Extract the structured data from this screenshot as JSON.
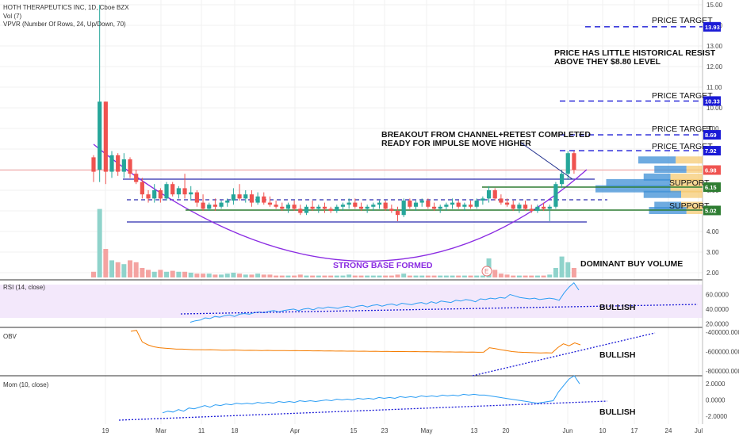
{
  "header": {
    "title": "HOTH THERAPEUTICS INC, 1D, Cboe BZX",
    "vol_label": "Vol (7)",
    "vpvr_label": "VPVR (Number Of Rows, 24, Up/Down, 70)",
    "rsi_label": "RSI (14, close)",
    "obv_label": "OBV",
    "mom_label": "Mom (10, close)"
  },
  "colors": {
    "up": "#26a69a",
    "down": "#ef5350",
    "channel": "#2a2aad",
    "arc": "#8a2be2",
    "support": "#2e7d32",
    "target": "#1a1ad6",
    "rsi_line": "#2a9df4",
    "obv_line": "#f57c00",
    "mom_line": "#2a9df4",
    "rsi_band": "#f3e8fb"
  },
  "price_axis": {
    "ticks": [
      "15.00",
      "14.00",
      "13.00",
      "12.00",
      "11.00",
      "10.00",
      "9.00",
      "8.00",
      "7.00",
      "6.00",
      "5.00",
      "4.00",
      "3.00",
      "2.00"
    ],
    "badges": [
      {
        "label": "13.93",
        "color": "#1a1ad6"
      },
      {
        "label": "10.33",
        "color": "#1a1ad6"
      },
      {
        "label": "8.69",
        "color": "#1a1ad6"
      },
      {
        "label": "7.92",
        "color": "#1a1ad6"
      },
      {
        "label": "6.98",
        "color": "#ef5350"
      },
      {
        "label": "6.15",
        "color": "#2e7d32"
      },
      {
        "label": "5.02",
        "color": "#2e7d32"
      }
    ]
  },
  "rsi_axis": {
    "ticks": [
      "60.0000",
      "40.0000",
      "20.0000"
    ]
  },
  "obv_axis": {
    "ticks": [
      "-400000.0000",
      "-600000.0000",
      "-800000.0000"
    ]
  },
  "mom_axis": {
    "ticks": [
      "2.0000",
      "0.0000",
      "-2.0000"
    ]
  },
  "x_axis": {
    "labels": [
      "19",
      "Mar",
      "11",
      "18",
      "Apr",
      "15",
      "23",
      "May",
      "13",
      "20",
      "Jun",
      "10",
      "17",
      "24",
      "Jul"
    ]
  },
  "annotations": {
    "price_target_1": "PRICE TARGET",
    "price_target_2": "PRICE TARGET",
    "price_target_3": "PRICE TARGET",
    "price_target_4": "PRICE TARGET",
    "resistance_line1": "PRICE HAS LITTLE HISTORICAL RESIST",
    "resistance_line2": "ABOVE THEY $8.80 LEVEL",
    "breakout_line1": "BREAKOUT FROM CHANNEL+RETEST COMPLETED",
    "breakout_line2": "READY FOR IMPULSE MOVE HIGHER",
    "support_1": "SUPPORT",
    "support_2": "SUPPORT",
    "base": "STRONG BASE FORMED",
    "volume": "DOMINANT BUY VOLUME",
    "rsi_bullish": "BULLISH",
    "obv_bullish": "BULLISH",
    "mom_bullish": "BULLISH",
    "earnings_marker": "E"
  },
  "chart_data": [
    {
      "type": "candlestick",
      "title": "HOTH THERAPEUTICS INC, 1D, Cboe BZX",
      "ylim": [
        1.5,
        15
      ],
      "price_levels": {
        "price_targets": [
          13.93,
          10.33,
          8.69,
          7.92
        ],
        "last": 6.98,
        "support": [
          6.15,
          5.02
        ]
      },
      "ohlc": [
        [
          7.6,
          7.7,
          6.4,
          6.9
        ],
        [
          7.0,
          15.0,
          6.4,
          10.3
        ],
        [
          10.3,
          10.3,
          6.3,
          6.9
        ],
        [
          6.9,
          7.9,
          6.6,
          7.7
        ],
        [
          7.7,
          7.8,
          6.7,
          6.9
        ],
        [
          6.9,
          7.8,
          6.6,
          7.5
        ],
        [
          7.5,
          7.6,
          6.6,
          6.8
        ],
        [
          6.8,
          7.0,
          6.3,
          6.4
        ],
        [
          6.4,
          6.6,
          5.6,
          5.8
        ],
        [
          5.8,
          6.0,
          5.4,
          5.6
        ],
        [
          5.6,
          6.3,
          5.4,
          6.0
        ],
        [
          6.0,
          6.1,
          5.4,
          5.6
        ],
        [
          5.6,
          6.4,
          5.5,
          6.3
        ],
        [
          6.3,
          6.4,
          5.7,
          5.8
        ],
        [
          5.8,
          6.2,
          5.6,
          6.1
        ],
        [
          6.1,
          6.8,
          5.6,
          5.8
        ],
        [
          5.8,
          6.2,
          5.5,
          5.9
        ],
        [
          5.9,
          6.0,
          5.2,
          5.4
        ],
        [
          5.4,
          5.8,
          5.0,
          5.1
        ],
        [
          5.1,
          5.4,
          5.0,
          5.3
        ],
        [
          5.3,
          5.6,
          5.0,
          5.2
        ],
        [
          5.2,
          5.5,
          5.1,
          5.4
        ],
        [
          5.4,
          5.6,
          5.2,
          5.5
        ],
        [
          5.5,
          6.1,
          5.3,
          5.8
        ],
        [
          5.8,
          6.3,
          5.5,
          5.6
        ],
        [
          5.6,
          6.0,
          5.4,
          5.8
        ],
        [
          5.8,
          6.0,
          5.2,
          5.4
        ],
        [
          5.4,
          5.9,
          5.3,
          5.7
        ],
        [
          5.7,
          5.9,
          5.3,
          5.4
        ],
        [
          5.4,
          5.7,
          5.2,
          5.3
        ],
        [
          5.3,
          5.5,
          5.1,
          5.2
        ],
        [
          5.2,
          5.4,
          5.0,
          5.1
        ],
        [
          5.1,
          5.4,
          4.9,
          5.3
        ],
        [
          5.3,
          5.5,
          5.0,
          5.1
        ],
        [
          5.1,
          5.3,
          4.8,
          4.9
        ],
        [
          4.9,
          5.3,
          4.8,
          5.2
        ],
        [
          5.2,
          5.5,
          5.0,
          5.1
        ],
        [
          5.1,
          5.3,
          4.9,
          5.2
        ],
        [
          5.2,
          5.4,
          4.9,
          5.1
        ],
        [
          5.1,
          5.2,
          4.9,
          5.0
        ],
        [
          5.0,
          5.3,
          4.9,
          5.2
        ],
        [
          5.2,
          5.4,
          5.0,
          5.3
        ],
        [
          5.3,
          5.6,
          5.1,
          5.4
        ],
        [
          5.4,
          5.6,
          5.1,
          5.2
        ],
        [
          5.2,
          5.4,
          5.0,
          5.1
        ],
        [
          5.1,
          5.3,
          4.9,
          5.2
        ],
        [
          5.2,
          5.4,
          5.0,
          5.3
        ],
        [
          5.3,
          5.5,
          5.1,
          5.4
        ],
        [
          5.4,
          5.5,
          5.0,
          5.1
        ],
        [
          5.1,
          5.3,
          4.9,
          5.0
        ],
        [
          5.0,
          5.2,
          4.5,
          4.8
        ],
        [
          4.8,
          5.6,
          4.7,
          5.5
        ],
        [
          5.5,
          5.6,
          5.1,
          5.2
        ],
        [
          5.2,
          5.5,
          5.0,
          5.4
        ],
        [
          5.4,
          5.6,
          5.2,
          5.5
        ],
        [
          5.5,
          5.6,
          5.1,
          5.2
        ],
        [
          5.2,
          5.4,
          5.0,
          5.1
        ],
        [
          5.1,
          5.3,
          4.9,
          5.2
        ],
        [
          5.2,
          5.4,
          5.0,
          5.3
        ],
        [
          5.3,
          5.6,
          5.1,
          5.4
        ],
        [
          5.4,
          5.5,
          5.1,
          5.2
        ],
        [
          5.2,
          5.4,
          5.0,
          5.3
        ],
        [
          5.3,
          5.5,
          5.1,
          5.2
        ],
        [
          5.2,
          5.6,
          5.1,
          5.5
        ],
        [
          5.5,
          5.7,
          5.3,
          5.6
        ],
        [
          5.6,
          6.2,
          5.4,
          6.0
        ],
        [
          6.0,
          6.1,
          5.5,
          5.6
        ],
        [
          5.6,
          5.8,
          5.3,
          5.4
        ],
        [
          5.4,
          5.6,
          5.2,
          5.3
        ],
        [
          5.3,
          5.5,
          5.0,
          5.1
        ],
        [
          5.1,
          5.4,
          4.9,
          5.3
        ],
        [
          5.3,
          5.5,
          5.0,
          5.1
        ],
        [
          5.1,
          5.3,
          4.9,
          5.0
        ],
        [
          5.0,
          5.3,
          4.9,
          5.2
        ],
        [
          5.2,
          5.4,
          5.0,
          5.1
        ],
        [
          5.1,
          5.3,
          4.5,
          5.2
        ],
        [
          5.2,
          6.4,
          5.1,
          6.3
        ],
        [
          6.3,
          7.0,
          6.1,
          6.8
        ],
        [
          6.8,
          7.9,
          6.5,
          7.8
        ],
        [
          7.8,
          7.9,
          6.8,
          7.0
        ]
      ],
      "volume_note": "DOMINANT BUY VOLUME"
    },
    {
      "type": "line",
      "title": "RSI (14, close)",
      "ylim": [
        15,
        80
      ],
      "series": [
        {
          "values": [
            22,
            24,
            25,
            28,
            27,
            30,
            29,
            31,
            32,
            30,
            33,
            34,
            33,
            35,
            36,
            35,
            37,
            38,
            36,
            38,
            39,
            40,
            38,
            40,
            41,
            39,
            42,
            41,
            43,
            42,
            41,
            43,
            44,
            42,
            44,
            45,
            43,
            45,
            46,
            44,
            46,
            47,
            45,
            48,
            47,
            46,
            48,
            49,
            47,
            50,
            48,
            51,
            50,
            49,
            52,
            51,
            53,
            52,
            50,
            54,
            53,
            55,
            54,
            56,
            55,
            60,
            58,
            56,
            55,
            54,
            55,
            53,
            54,
            55,
            54,
            52,
            62,
            70,
            76,
            66
          ]
        }
      ]
    },
    {
      "type": "line",
      "title": "OBV",
      "ylim": [
        -850000,
        -350000
      ],
      "series": [
        {
          "values": [
            -390000,
            -380000,
            -500000,
            -530000,
            -550000,
            -560000,
            -565000,
            -570000,
            -575000,
            -575000,
            -578000,
            -580000,
            -580000,
            -582000,
            -580000,
            -583000,
            -585000,
            -585000,
            -584000,
            -586000,
            -588000,
            -587000,
            -588000,
            -589000,
            -588000,
            -590000,
            -589000,
            -590000,
            -591000,
            -590000,
            -592000,
            -591000,
            -593000,
            -592000,
            -594000,
            -593000,
            -595000,
            -594000,
            -596000,
            -595000,
            -597000,
            -596000,
            -598000,
            -597000,
            -599000,
            -598000,
            -600000,
            -599000,
            -600000,
            -601000,
            -600000,
            -602000,
            -601000,
            -603000,
            -602000,
            -604000,
            -603000,
            -605000,
            -604000,
            -606000,
            -605000,
            -607000,
            -606000,
            -560000,
            -570000,
            -580000,
            -590000,
            -600000,
            -605000,
            -608000,
            -610000,
            -612000,
            -614000,
            -612000,
            -615000,
            -560000,
            -520000,
            -540000,
            -510000,
            -530000
          ]
        }
      ]
    },
    {
      "type": "line",
      "title": "Mom (10, close)",
      "ylim": [
        -3,
        3
      ],
      "series": [
        {
          "values": [
            -1.6,
            -1.4,
            -1.5,
            -1.2,
            -1.4,
            -1.0,
            -1.1,
            -0.9,
            -0.7,
            -0.9,
            -0.6,
            -0.7,
            -0.5,
            -0.6,
            -0.4,
            -0.5,
            -0.4,
            -0.5,
            -0.3,
            -0.4,
            -0.3,
            -0.4,
            -0.2,
            -0.3,
            -0.2,
            -0.3,
            -0.1,
            -0.2,
            -0.1,
            -0.2,
            -0.1,
            0.0,
            -0.1,
            0.1,
            0.0,
            0.1,
            0.0,
            0.2,
            0.1,
            0.2,
            0.1,
            0.3,
            0.2,
            0.3,
            0.2,
            0.4,
            0.3,
            0.4,
            0.3,
            0.5,
            0.4,
            0.5,
            0.4,
            0.6,
            0.5,
            0.6,
            0.5,
            0.7,
            0.6,
            0.7,
            0.6,
            0.6,
            0.5,
            0.4,
            0.3,
            0.2,
            0.1,
            0.0,
            -0.1,
            -0.2,
            -0.3,
            -0.4,
            -0.3,
            -0.2,
            -0.1,
            1.0,
            1.8,
            2.6,
            3.0,
            2.0
          ]
        }
      ]
    }
  ]
}
